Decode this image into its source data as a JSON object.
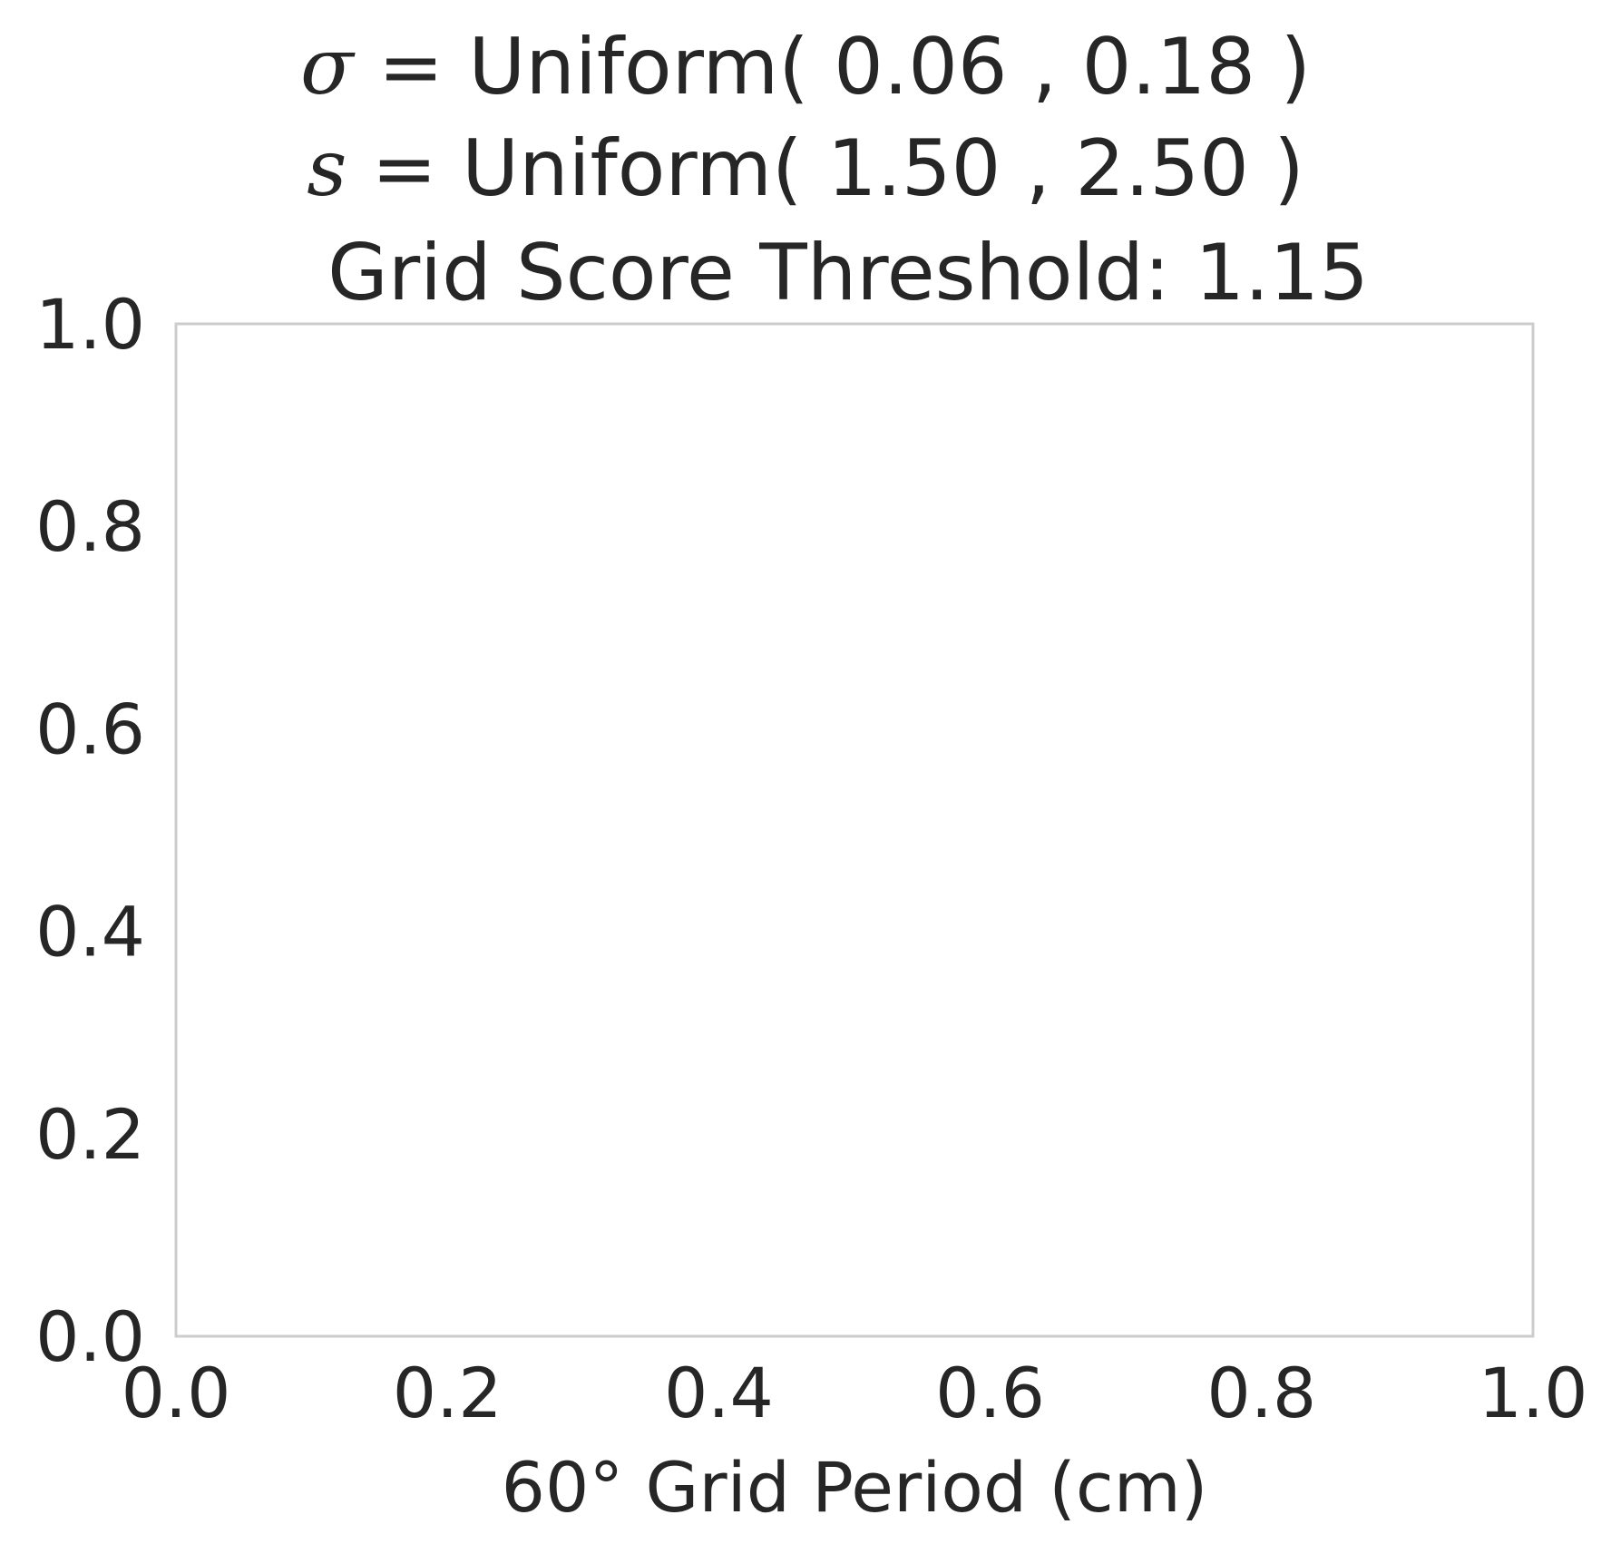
{
  "chart_data": {
    "type": "scatter",
    "title_lines": [
      {
        "symbol": "σ",
        "text": "= Uniform( 0.06 , 0.18 )"
      },
      {
        "symbol": "s",
        "text": "= Uniform( 1.50 , 2.50 )"
      },
      {
        "symbol": "",
        "text": "Grid Score Threshold: 1.15"
      }
    ],
    "xlabel": "60° Grid Period (cm)",
    "ylabel": "",
    "xlim": [
      0.0,
      1.0
    ],
    "ylim": [
      0.0,
      1.0
    ],
    "xticks": [
      "0.0",
      "0.2",
      "0.4",
      "0.6",
      "0.8",
      "1.0"
    ],
    "yticks": [
      "0.0",
      "0.2",
      "0.4",
      "0.6",
      "0.8",
      "1.0"
    ],
    "grid": true,
    "series": []
  }
}
